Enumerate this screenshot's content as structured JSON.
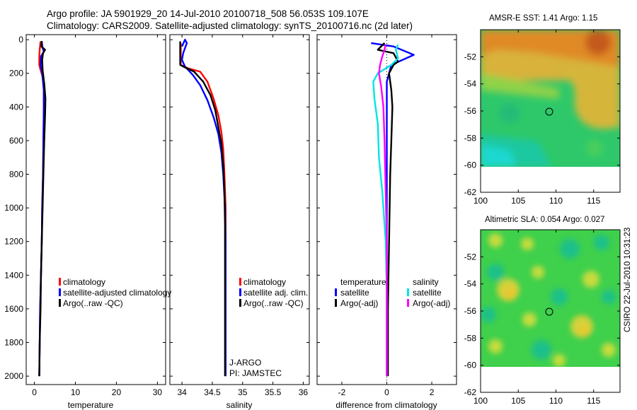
{
  "header": {
    "line1": "Argo profile: JA 5901929_20 14-Jul-2010 20100718_508 56.053S 109.107E",
    "line2": "Climatology: CARS2009. Satellite-adjusted climatology: synTS_20100716.nc (2d later)"
  },
  "stamp": "CSIRO 22-Jul-2010 10:31:23",
  "colors": {
    "climatology": "#ff0000",
    "satellite": "#0000ff",
    "argo": "#000000",
    "sat_salinity": "#00e5e5",
    "argo_salinity": "#ff00ff"
  },
  "chart_data": [
    {
      "type": "line",
      "id": "temperature",
      "xlabel": "temperature",
      "ylabel": "",
      "xlim": [
        -2,
        32
      ],
      "ylim": [
        2050,
        -30
      ],
      "xticks": [
        0,
        10,
        20,
        30
      ],
      "yticks": [
        0,
        200,
        400,
        600,
        800,
        1000,
        1200,
        1400,
        1600,
        1800,
        2000
      ],
      "series": [
        {
          "name": "climatology",
          "color": "climatology",
          "points": [
            [
              1.5,
              10
            ],
            [
              1.3,
              60
            ],
            [
              1.2,
              100
            ],
            [
              1.2,
              150
            ],
            [
              1.5,
              180
            ],
            [
              2.0,
              220
            ],
            [
              2.3,
              300
            ],
            [
              2.3,
              400
            ],
            [
              2.2,
              600
            ],
            [
              2.1,
              800
            ],
            [
              1.9,
              1000
            ],
            [
              1.8,
              1200
            ],
            [
              1.6,
              1400
            ],
            [
              1.4,
              1600
            ],
            [
              1.3,
              1800
            ],
            [
              1.2,
              2000
            ]
          ]
        },
        {
          "name": "satellite-adjusted climatology",
          "color": "satellite",
          "points": [
            [
              1.8,
              10
            ],
            [
              2.0,
              50
            ],
            [
              2.3,
              70
            ],
            [
              1.6,
              100
            ],
            [
              1.5,
              150
            ],
            [
              1.9,
              200
            ],
            [
              2.3,
              300
            ],
            [
              2.3,
              400
            ],
            [
              2.2,
              600
            ],
            [
              2.1,
              800
            ],
            [
              1.9,
              1000
            ],
            [
              1.8,
              1200
            ],
            [
              1.6,
              1400
            ],
            [
              1.4,
              1600
            ],
            [
              1.3,
              1800
            ],
            [
              1.2,
              2000
            ]
          ]
        },
        {
          "name": "Argo(..raw -QC)",
          "color": "argo",
          "points": [
            [
              1.8,
              8
            ],
            [
              1.7,
              40
            ],
            [
              2.6,
              60
            ],
            [
              2.1,
              80
            ],
            [
              1.9,
              120
            ],
            [
              2.0,
              180
            ],
            [
              2.4,
              260
            ],
            [
              2.7,
              350
            ],
            [
              2.6,
              450
            ],
            [
              2.4,
              600
            ],
            [
              2.2,
              800
            ],
            [
              2.0,
              1000
            ],
            [
              1.8,
              1200
            ],
            [
              1.6,
              1400
            ],
            [
              1.5,
              1600
            ],
            [
              1.3,
              1800
            ],
            [
              1.2,
              2000
            ]
          ]
        }
      ],
      "legend": [
        "climatology",
        "satellite-adjusted climatology",
        "Argo(..raw -QC)"
      ]
    },
    {
      "type": "line",
      "id": "salinity",
      "xlabel": "salinity",
      "ylabel": "",
      "xlim": [
        33.8,
        36.1
      ],
      "ylim": [
        2050,
        -30
      ],
      "xticks": [
        34,
        34.5,
        35,
        35.5,
        36
      ],
      "series": [
        {
          "name": "climatology",
          "color": "climatology",
          "points": [
            [
              33.98,
              20
            ],
            [
              33.98,
              150
            ],
            [
              34.1,
              170
            ],
            [
              34.3,
              190
            ],
            [
              34.42,
              250
            ],
            [
              34.52,
              350
            ],
            [
              34.6,
              450
            ],
            [
              34.65,
              550
            ],
            [
              34.68,
              650
            ],
            [
              34.7,
              800
            ],
            [
              34.72,
              1000
            ],
            [
              34.72,
              1200
            ],
            [
              34.72,
              1400
            ],
            [
              34.72,
              1600
            ],
            [
              34.72,
              1800
            ],
            [
              34.72,
              2000
            ]
          ]
        },
        {
          "name": "satellite adj. clim.",
          "color": "satellite",
          "points": [
            [
              34.0,
              40
            ],
            [
              34.05,
              0
            ],
            [
              34.08,
              20
            ],
            [
              34.02,
              80
            ],
            [
              34.0,
              120
            ],
            [
              34.05,
              160
            ],
            [
              34.18,
              210
            ],
            [
              34.3,
              270
            ],
            [
              34.42,
              360
            ],
            [
              34.52,
              460
            ],
            [
              34.6,
              560
            ],
            [
              34.65,
              670
            ],
            [
              34.68,
              800
            ],
            [
              34.71,
              1000
            ],
            [
              34.72,
              1200
            ],
            [
              34.72,
              1400
            ],
            [
              34.72,
              1600
            ],
            [
              34.72,
              1800
            ],
            [
              34.72,
              2000
            ]
          ]
        },
        {
          "name": "Argo(..raw -QC)",
          "color": "argo",
          "points": [
            [
              33.97,
              10
            ],
            [
              33.97,
              150
            ],
            [
              34.05,
              165
            ],
            [
              34.2,
              190
            ],
            [
              34.35,
              250
            ],
            [
              34.47,
              330
            ],
            [
              34.55,
              420
            ],
            [
              34.6,
              520
            ],
            [
              34.65,
              620
            ],
            [
              34.68,
              750
            ],
            [
              34.7,
              900
            ],
            [
              34.71,
              1100
            ],
            [
              34.71,
              1300
            ],
            [
              34.71,
              1500
            ],
            [
              34.71,
              1700
            ],
            [
              34.71,
              2000
            ]
          ]
        }
      ],
      "legend": [
        "climatology",
        "satellite adj. clim.",
        "Argo(..raw -QC)"
      ],
      "annotation": {
        "line1": "J-ARGO",
        "line2": "PI: JAMSTEC"
      }
    },
    {
      "type": "line",
      "id": "difference",
      "xlabel": "difference from climatology",
      "ylabel": "",
      "xlim": [
        -3.1,
        3.1
      ],
      "ylim": [
        2050,
        -30
      ],
      "xticks": [
        -2,
        0,
        2
      ],
      "series": [
        {
          "name": "temperature satellite",
          "color": "satellite",
          "points": [
            [
              -0.7,
              20
            ],
            [
              0.3,
              40
            ],
            [
              1.2,
              90
            ],
            [
              0.2,
              150
            ],
            [
              0,
              250
            ],
            [
              0,
              400
            ],
            [
              0,
              800
            ],
            [
              0,
              2000
            ]
          ]
        },
        {
          "name": "temperature Argo(-adj)",
          "color": "argo",
          "points": [
            [
              -0.1,
              20
            ],
            [
              -0.4,
              60
            ],
            [
              0.3,
              80
            ],
            [
              0.5,
              130
            ],
            [
              0.3,
              150
            ],
            [
              0.1,
              200
            ],
            [
              0.2,
              300
            ],
            [
              0.25,
              400
            ],
            [
              0.2,
              600
            ],
            [
              0.15,
              800
            ],
            [
              0.1,
              1200
            ],
            [
              0.05,
              1600
            ],
            [
              0.05,
              2000
            ]
          ]
        },
        {
          "name": "salinity satellite",
          "color": "sat_salinity",
          "points": [
            [
              0.5,
              30
            ],
            [
              0.4,
              60
            ],
            [
              0.5,
              110
            ],
            [
              0.2,
              150
            ],
            [
              -0.4,
              200
            ],
            [
              -0.6,
              250
            ],
            [
              -0.55,
              350
            ],
            [
              -0.4,
              500
            ],
            [
              -0.35,
              700
            ],
            [
              -0.2,
              900
            ],
            [
              -0.05,
              1200
            ],
            [
              0,
              1500
            ],
            [
              0,
              2000
            ]
          ]
        },
        {
          "name": "salinity Argo(-adj)",
          "color": "argo_salinity",
          "points": [
            [
              -0.05,
              30
            ],
            [
              -0.1,
              60
            ],
            [
              -0.2,
              100
            ],
            [
              -0.3,
              150
            ],
            [
              -0.35,
              200
            ],
            [
              -0.25,
              280
            ],
            [
              -0.15,
              400
            ],
            [
              -0.1,
              600
            ],
            [
              -0.05,
              900
            ],
            [
              0,
              1200
            ],
            [
              0,
              2000
            ]
          ]
        }
      ],
      "legend": {
        "temperature_title": "temperature",
        "salinity_title": "salinity",
        "temperature": [
          "satellite",
          "Argo(-adj)"
        ],
        "salinity": [
          "satellite",
          "Argo(-adj)"
        ]
      }
    },
    {
      "type": "heatmap",
      "id": "sst-map",
      "title": "AMSR-E SST: 1.41 Argo: 1.15",
      "xlim": [
        100,
        118.5
      ],
      "ylim": [
        -62,
        -50
      ],
      "xticks": [
        100,
        105,
        110,
        115
      ],
      "yticks": [
        -52,
        -54,
        -56,
        -58,
        -60,
        -62
      ],
      "data_extent_ylim": [
        -60,
        -50
      ],
      "marker": {
        "lon": 109.107,
        "lat": -56.053
      }
    },
    {
      "type": "heatmap",
      "id": "sla-map",
      "title": "Altimetric SLA: 0.054 Argo: 0.027",
      "xlim": [
        100,
        118.5
      ],
      "ylim": [
        -62,
        -50
      ],
      "xticks": [
        100,
        105,
        110,
        115
      ],
      "yticks": [
        -52,
        -54,
        -56,
        -58,
        -60,
        -62
      ],
      "data_extent_ylim": [
        -60,
        -50
      ],
      "marker": {
        "lon": 109.107,
        "lat": -56.053
      }
    }
  ]
}
